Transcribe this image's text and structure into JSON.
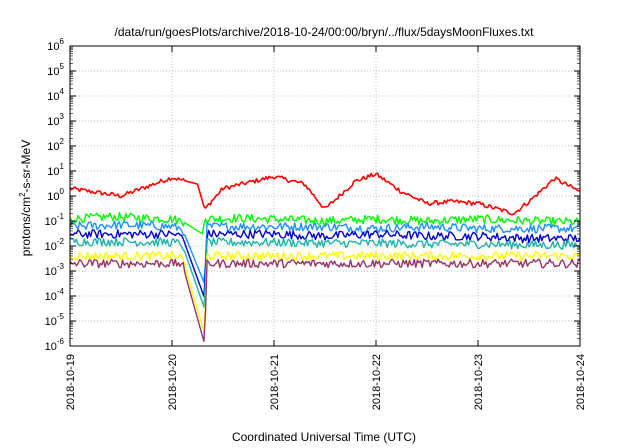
{
  "chart_data": {
    "type": "line",
    "title": "/data/run/goesPlots/archive/2018-10-24/00:00/bryn/../flux/5daysMoonFluxes.txt",
    "xlabel": "Coordinated Universal Time (UTC)",
    "ylabel": "protons/cm²-s-sr-MeV",
    "y_scale": "log",
    "ylim": [
      1e-06,
      1000000.0
    ],
    "xlim": [
      "2018-10-19T00:00",
      "2018-10-24T00:00"
    ],
    "x_tick_labels": [
      "2018-10-19",
      "2018-10-20",
      "2018-10-21",
      "2018-10-22",
      "2018-10-23",
      "2018-10-24"
    ],
    "y_tick_labels": [
      {
        "base": "10",
        "exp": "-6"
      },
      {
        "base": "10",
        "exp": "-5"
      },
      {
        "base": "10",
        "exp": "-4"
      },
      {
        "base": "10",
        "exp": "-3"
      },
      {
        "base": "10",
        "exp": "-2"
      },
      {
        "base": "10",
        "exp": "-1"
      },
      {
        "base": "10",
        "exp": "0"
      },
      {
        "base": "10",
        "exp": "1"
      },
      {
        "base": "10",
        "exp": "2"
      },
      {
        "base": "10",
        "exp": "3"
      },
      {
        "base": "10",
        "exp": "4"
      },
      {
        "base": "10",
        "exp": "5"
      },
      {
        "base": "10",
        "exp": "6"
      }
    ],
    "grid": true,
    "series": [
      {
        "color": "#ff0000",
        "days": [
          0,
          0.5,
          1,
          1.25,
          1.32,
          1.5,
          2,
          2.3,
          2.5,
          2.8,
          3,
          3.25,
          3.5,
          3.75,
          4,
          4.35,
          4.5,
          4.75,
          5
        ],
        "values": [
          2,
          1,
          5.5,
          3,
          0.3,
          2,
          6,
          3,
          0.3,
          4,
          7.5,
          1.5,
          0.5,
          0.6,
          0.5,
          0.2,
          0.6,
          5,
          1.5
        ]
      },
      {
        "color": "#00ff00",
        "days": [
          0,
          0.4,
          1,
          1.1,
          1.3,
          1.32,
          1.6,
          2,
          2.5,
          3,
          3.5,
          4,
          4.5,
          5
        ],
        "values": [
          0.12,
          0.15,
          0.12,
          0.1,
          0.03,
          0.12,
          0.13,
          0.12,
          0.1,
          0.12,
          0.1,
          0.12,
          0.1,
          0.09
        ]
      },
      {
        "color": "#1e90ff",
        "days": [
          0,
          0.5,
          1,
          1.1,
          1.32,
          1.34,
          2,
          2.5,
          3,
          3.5,
          4,
          4.5,
          5
        ],
        "values": [
          0.06,
          0.07,
          0.06,
          0.05,
          0.0003,
          0.06,
          0.06,
          0.06,
          0.05,
          0.06,
          0.05,
          0.05,
          0.05
        ]
      },
      {
        "color": "#0000cd",
        "days": [
          0,
          0.5,
          1,
          1.1,
          1.32,
          1.34,
          2,
          2.5,
          3,
          3.5,
          4,
          4.5,
          5
        ],
        "values": [
          0.03,
          0.03,
          0.03,
          0.025,
          8e-05,
          0.03,
          0.03,
          0.025,
          0.03,
          0.025,
          0.025,
          0.02,
          0.02
        ]
      },
      {
        "color": "#20b2aa",
        "days": [
          0,
          0.5,
          1,
          1.1,
          1.32,
          1.34,
          2,
          2.5,
          3,
          3.5,
          4,
          4.5,
          5
        ],
        "values": [
          0.015,
          0.015,
          0.014,
          0.012,
          3e-05,
          0.014,
          0.014,
          0.013,
          0.013,
          0.012,
          0.012,
          0.011,
          0.011
        ]
      },
      {
        "color": "#ffff00",
        "days": [
          0,
          0.5,
          1,
          1.1,
          1.32,
          1.34,
          2,
          2.5,
          3,
          3.5,
          4,
          4.5,
          5
        ],
        "values": [
          0.004,
          0.004,
          0.004,
          0.0035,
          3e-06,
          0.004,
          0.004,
          0.004,
          0.004,
          0.004,
          0.004,
          0.004,
          0.004
        ]
      },
      {
        "color": "#993366",
        "days": [
          0,
          0.5,
          1,
          1.1,
          1.32,
          1.34,
          2,
          2.5,
          3,
          3.5,
          4,
          4.5,
          5
        ],
        "values": [
          0.002,
          0.002,
          0.002,
          0.002,
          1.2e-06,
          0.002,
          0.002,
          0.002,
          0.002,
          0.002,
          0.002,
          0.002,
          0.002
        ]
      }
    ]
  }
}
